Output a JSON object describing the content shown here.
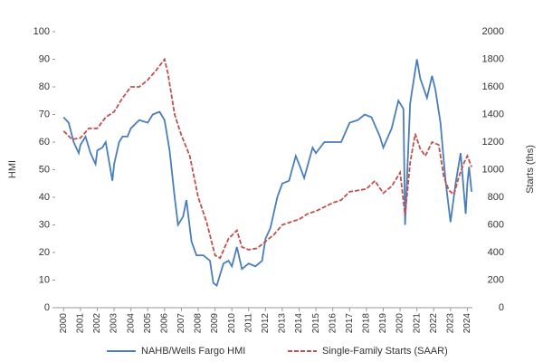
{
  "chart_data": {
    "type": "line",
    "y_label": "HMI",
    "y2_label": "Starts (ths)",
    "xlim": [
      1999.5,
      2024.3
    ],
    "xticks": [
      2000,
      2001,
      2002,
      2003,
      2004,
      2005,
      2006,
      2007,
      2008,
      2009,
      2010,
      2011,
      2012,
      2013,
      2014,
      2015,
      2016,
      2017,
      2018,
      2019,
      2020,
      2021,
      2022,
      2023,
      2024
    ],
    "ylim": [
      0,
      100
    ],
    "yticks": [
      0,
      10,
      20,
      30,
      40,
      50,
      60,
      70,
      80,
      90,
      100
    ],
    "y2lim": [
      0,
      2000
    ],
    "y2ticks": [
      0,
      200,
      400,
      600,
      800,
      1000,
      1200,
      1400,
      1600,
      1800,
      2000
    ],
    "series": [
      {
        "name": "NAHB/Wells Fargo HMI",
        "color": "#4a7ebb",
        "dashed": false,
        "x": [
          2000.0,
          2000.3,
          2000.6,
          2000.9,
          2001.0,
          2001.3,
          2001.6,
          2001.9,
          2002.0,
          2002.3,
          2002.5,
          2002.9,
          2003.0,
          2003.3,
          2003.5,
          2003.8,
          2004.0,
          2004.5,
          2005.0,
          2005.3,
          2005.7,
          2006.0,
          2006.3,
          2006.6,
          2006.8,
          2007.1,
          2007.3,
          2007.6,
          2007.9,
          2008.3,
          2008.7,
          2008.9,
          2009.1,
          2009.5,
          2009.8,
          2010.0,
          2010.3,
          2010.6,
          2011.0,
          2011.4,
          2011.8,
          2012.0,
          2012.3,
          2012.7,
          2013.0,
          2013.4,
          2013.8,
          2014.0,
          2014.3,
          2014.8,
          2015.0,
          2015.5,
          2016.0,
          2016.5,
          2017.0,
          2017.5,
          2017.9,
          2018.3,
          2018.8,
          2019.0,
          2019.5,
          2019.9,
          2020.2,
          2020.3,
          2020.6,
          2020.9,
          2021.0,
          2021.2,
          2021.6,
          2021.9,
          2022.1,
          2022.4,
          2022.7,
          2023.0,
          2023.3,
          2023.6,
          2023.9,
          2024.0,
          2024.1,
          2024.25
        ],
        "values": [
          69,
          67,
          60,
          56,
          59,
          62,
          56,
          52,
          57,
          58,
          60,
          46,
          52,
          60,
          62,
          62,
          65,
          68,
          67,
          70,
          71,
          68,
          57,
          40,
          30,
          33,
          39,
          24,
          19,
          19,
          17,
          9,
          8,
          16,
          17,
          15,
          22,
          14,
          16,
          15,
          17,
          25,
          29,
          40,
          45,
          46,
          55,
          52,
          47,
          58,
          56,
          60,
          60,
          60,
          67,
          68,
          70,
          69,
          62,
          58,
          65,
          75,
          72,
          30,
          74,
          86,
          90,
          83,
          76,
          84,
          79,
          67,
          46,
          31,
          45,
          56,
          34,
          45,
          51,
          42
        ]
      },
      {
        "name": "Single-Family Starts (SAAR)",
        "color": "#c0504d",
        "dashed": true,
        "axis": "y2",
        "x": [
          2000.0,
          2000.5,
          2001.0,
          2001.5,
          2002.0,
          2002.5,
          2003.0,
          2003.5,
          2004.0,
          2004.5,
          2005.0,
          2005.5,
          2006.0,
          2006.2,
          2006.6,
          2007.0,
          2007.5,
          2008.0,
          2008.5,
          2009.0,
          2009.3,
          2009.8,
          2010.3,
          2010.6,
          2011.0,
          2011.5,
          2012.0,
          2012.5,
          2013.0,
          2013.5,
          2014.0,
          2014.5,
          2015.0,
          2015.5,
          2016.0,
          2016.5,
          2017.0,
          2017.5,
          2018.0,
          2018.5,
          2019.0,
          2019.5,
          2020.0,
          2020.3,
          2020.6,
          2020.9,
          2021.2,
          2021.5,
          2021.9,
          2022.3,
          2022.6,
          2022.9,
          2023.2,
          2023.5,
          2023.8,
          2024.0,
          2024.25
        ],
        "values": [
          1280,
          1220,
          1230,
          1300,
          1300,
          1380,
          1420,
          1520,
          1600,
          1600,
          1650,
          1720,
          1800,
          1700,
          1400,
          1250,
          1100,
          800,
          620,
          380,
          360,
          500,
          560,
          440,
          420,
          430,
          480,
          530,
          600,
          620,
          640,
          680,
          700,
          730,
          760,
          780,
          840,
          850,
          860,
          920,
          830,
          880,
          980,
          670,
          1050,
          1260,
          1150,
          1100,
          1200,
          1180,
          950,
          850,
          820,
          950,
          1050,
          1100,
          1020
        ]
      }
    ]
  }
}
